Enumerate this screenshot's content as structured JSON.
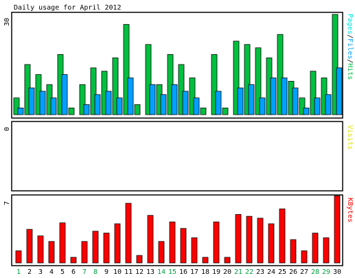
{
  "title": "Daily usage for April 2012",
  "colors": {
    "hits": "#00c040",
    "files": "#00a0ff",
    "pages": "#00e0e0",
    "visits": "#e0e000",
    "kbytes": "#ff0000",
    "weekday_label": "#000000",
    "weekend_label": "#00a040"
  },
  "chart_data": [
    {
      "type": "bar",
      "panel": "hits-files-pages",
      "y_max_label": "30",
      "legend": {
        "pages": "Pages",
        "files": "Files",
        "hits": "Hits",
        "separator": "/"
      },
      "ylim": [
        0,
        30
      ],
      "categories": [
        "1",
        "2",
        "3",
        "4",
        "5",
        "6",
        "7",
        "8",
        "9",
        "10",
        "11",
        "12",
        "13",
        "14",
        "15",
        "16",
        "17",
        "18",
        "19",
        "20",
        "21",
        "22",
        "23",
        "24",
        "25",
        "26",
        "27",
        "28",
        "29",
        "30"
      ],
      "weekend": [
        1,
        7,
        8,
        14,
        15,
        21,
        22,
        28,
        29
      ],
      "series": [
        {
          "name": "Hits",
          "values": [
            5,
            15,
            12,
            9,
            18,
            2,
            9,
            14,
            13,
            17,
            27,
            3,
            21,
            9,
            18,
            15,
            11,
            2,
            18,
            2,
            22,
            21,
            20,
            17,
            24,
            10,
            5,
            13,
            11,
            30
          ]
        },
        {
          "name": "Files",
          "values": [
            2,
            8,
            7,
            5,
            12,
            0,
            3,
            6,
            7,
            5,
            11,
            0,
            9,
            6,
            9,
            7,
            5,
            0,
            7,
            0,
            8,
            9,
            5,
            11,
            11,
            8,
            2,
            5,
            6,
            14
          ]
        },
        {
          "name": "Pages",
          "values": [
            0,
            0,
            0,
            0,
            0,
            0,
            0,
            0,
            0,
            0,
            0,
            0,
            0,
            0,
            0,
            0,
            0,
            0,
            0,
            0,
            0,
            0,
            0,
            0,
            0,
            0,
            0,
            0,
            0,
            0
          ]
        }
      ]
    },
    {
      "type": "bar",
      "panel": "visits",
      "y_max_label": "0",
      "legend": {
        "visits": "Visits"
      },
      "ylim": [
        0,
        1
      ],
      "series": [
        {
          "name": "Visits",
          "values": [
            0,
            0,
            0,
            0,
            0,
            0,
            0,
            0,
            0,
            0,
            0,
            0,
            0,
            0,
            0,
            0,
            0,
            0,
            0,
            0,
            0,
            0,
            0,
            0,
            0,
            0,
            0,
            0,
            0,
            0
          ]
        }
      ]
    },
    {
      "type": "bar",
      "panel": "kbytes",
      "y_max_label": "7",
      "legend": {
        "kbytes": "KBytes"
      },
      "ylim": [
        0,
        7
      ],
      "series": [
        {
          "name": "KBytes",
          "values": [
            1.3,
            3.6,
            2.9,
            2.3,
            4.3,
            0.6,
            2.3,
            3.4,
            3.2,
            4.2,
            6.4,
            0.8,
            5.1,
            2.3,
            4.4,
            3.7,
            2.7,
            0.6,
            4.4,
            0.6,
            5.2,
            5.0,
            4.8,
            4.2,
            5.8,
            2.5,
            1.3,
            3.2,
            2.7,
            7.2
          ]
        }
      ]
    }
  ]
}
